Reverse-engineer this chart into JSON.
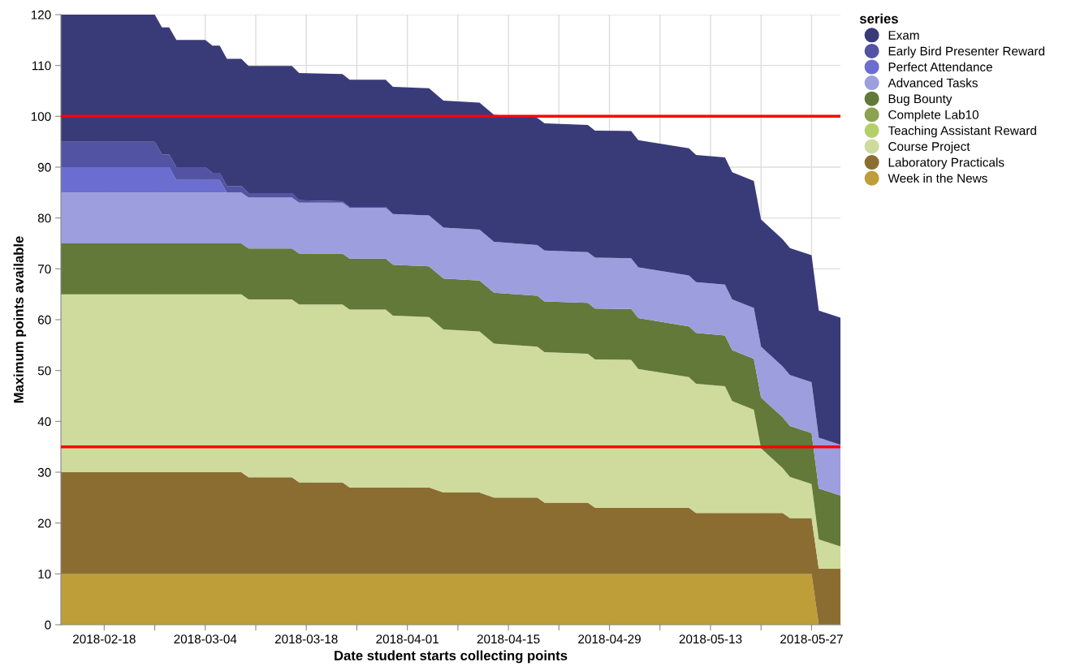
{
  "chart_data": {
    "type": "area",
    "stacked": true,
    "xlabel": "Date student starts collecting points",
    "ylabel": "Maximum points available",
    "legend_title": "series",
    "legend": "right",
    "grid": true,
    "x": [
      "2018-02-12",
      "2018-02-25",
      "2018-02-26",
      "2018-02-27",
      "2018-02-28",
      "2018-03-04",
      "2018-03-05",
      "2018-03-06",
      "2018-03-07",
      "2018-03-09",
      "2018-03-10",
      "2018-03-11",
      "2018-03-12",
      "2018-03-16",
      "2018-03-17",
      "2018-03-23",
      "2018-03-24",
      "2018-03-29",
      "2018-03-30",
      "2018-04-04",
      "2018-04-06",
      "2018-04-11",
      "2018-04-13",
      "2018-04-19",
      "2018-04-20",
      "2018-04-26",
      "2018-04-27",
      "2018-05-02",
      "2018-05-03",
      "2018-05-10",
      "2018-05-11",
      "2018-05-15",
      "2018-05-16",
      "2018-05-19",
      "2018-05-20",
      "2018-05-23",
      "2018-05-24",
      "2018-05-27",
      "2018-05-28",
      "2018-05-31"
    ],
    "series": [
      {
        "name": "Week in the News",
        "color": "#bd9e39",
        "values": [
          10,
          10,
          10,
          10,
          10,
          10,
          10,
          10,
          10,
          10,
          10,
          10,
          10,
          10,
          10,
          10,
          10,
          10,
          10,
          10,
          10,
          10,
          10,
          10,
          10,
          10,
          10,
          10,
          10,
          10,
          10,
          10,
          10,
          10,
          10,
          10,
          10,
          10,
          0,
          0
        ]
      },
      {
        "name": "Laboratory Practicals",
        "color": "#8c6d31",
        "values": [
          20,
          20,
          20,
          20,
          20,
          20,
          20,
          20,
          20,
          20,
          19,
          19,
          19,
          19,
          18,
          18,
          17,
          17,
          17,
          17,
          16,
          16,
          15,
          15,
          14,
          14,
          13,
          13,
          13,
          13,
          12,
          12,
          12,
          12,
          12,
          12,
          11,
          11,
          11,
          11
        ]
      },
      {
        "name": "Course Project",
        "color": "#cedb9c",
        "values": [
          35,
          35,
          35,
          35,
          35,
          35,
          35,
          35,
          35,
          35,
          35,
          35,
          35,
          35,
          35,
          35,
          35,
          35,
          33.8,
          33.5,
          32.1,
          31.7,
          30.3,
          29.7,
          29.6,
          29.3,
          29.2,
          29.1,
          27.3,
          25.7,
          25.4,
          24.9,
          22.0,
          20.3,
          12.7,
          8.8,
          8.1,
          6.7,
          5.8,
          4.4
        ]
      },
      {
        "name": "Teaching Assistant Reward",
        "color": "#b5cf6b",
        "values": [
          null,
          null,
          null,
          null,
          null,
          null,
          null,
          null,
          null,
          null,
          null,
          null,
          null,
          null,
          null,
          null,
          null,
          null,
          null,
          null,
          null,
          null,
          null,
          null,
          null,
          null,
          null,
          null,
          null,
          null,
          null,
          null,
          null,
          null,
          null,
          null,
          null,
          null,
          null,
          null
        ]
      },
      {
        "name": "Complete Lab10",
        "color": "#8ca252",
        "values": [
          null,
          null,
          null,
          null,
          null,
          null,
          null,
          null,
          null,
          null,
          null,
          null,
          null,
          null,
          null,
          null,
          null,
          null,
          null,
          null,
          null,
          null,
          null,
          null,
          null,
          null,
          null,
          null,
          null,
          null,
          null,
          null,
          null,
          null,
          null,
          null,
          null,
          null,
          null,
          null
        ]
      },
      {
        "name": "Bug Bounty",
        "color": "#637939",
        "values": [
          10,
          10,
          10,
          10,
          10,
          10,
          10,
          10,
          10,
          10,
          10,
          10,
          10,
          10,
          10,
          10,
          10,
          10,
          10,
          10,
          10,
          10,
          10,
          10,
          10,
          10,
          10,
          10,
          10,
          10,
          10,
          10,
          10,
          10,
          10,
          10,
          10,
          10,
          10,
          10
        ]
      },
      {
        "name": "Advanced Tasks",
        "color": "#9c9ede",
        "values": [
          10,
          10,
          10,
          10,
          10,
          10,
          10,
          10,
          10,
          10,
          10,
          10,
          10,
          10,
          10,
          10,
          10,
          10,
          10,
          10,
          10,
          10,
          10,
          10,
          10,
          10,
          10,
          10,
          10,
          10,
          10,
          10,
          10,
          10,
          10,
          10,
          10,
          10,
          10,
          10
        ]
      },
      {
        "name": "Perfect Attendance",
        "color": "#6b6ecf",
        "values": [
          5,
          5,
          5,
          5,
          2.5,
          2.5,
          2.5,
          2.5,
          0,
          0,
          0,
          0,
          0,
          0,
          0,
          0,
          0,
          0,
          0,
          0,
          0,
          0,
          0,
          0,
          0,
          0,
          0,
          0,
          0,
          0,
          0,
          0,
          0,
          0,
          0,
          0,
          0,
          0,
          0,
          0
        ]
      },
      {
        "name": "Early Bird Presenter Reward",
        "color": "#5254a3",
        "values": [
          5,
          5,
          2.5,
          2.5,
          2.5,
          2.5,
          1.4,
          1.4,
          1.3,
          1.3,
          0.9,
          0.9,
          0.9,
          0.9,
          0.5,
          0.3,
          0.2,
          0.2,
          0,
          0,
          0,
          0,
          0,
          0,
          0,
          0,
          0,
          0,
          0,
          0,
          0,
          0,
          0,
          0,
          0,
          0,
          0,
          0,
          0,
          0
        ]
      },
      {
        "name": "Exam",
        "color": "#393b79",
        "values": [
          25,
          25,
          25,
          25,
          25,
          25,
          25,
          25,
          25,
          25,
          25,
          25,
          25,
          25,
          25,
          25,
          25,
          25,
          25,
          25,
          25,
          25,
          25,
          25,
          25,
          25,
          25,
          25,
          25,
          25,
          25,
          25,
          25,
          25,
          25,
          25,
          25,
          25,
          25,
          25
        ]
      }
    ],
    "xlim": [
      "2018-02-12",
      "2018-05-31"
    ],
    "xticks": [
      "2018-02-18",
      {
        "value": "2018-02-25",
        "label": null
      },
      "2018-03-04",
      {
        "value": "2018-03-11",
        "label": null
      },
      "2018-03-18",
      {
        "value": "2018-03-25",
        "label": null
      },
      "2018-04-01",
      {
        "value": "2018-04-08",
        "label": null
      },
      "2018-04-15",
      {
        "value": "2018-04-22",
        "label": null
      },
      "2018-04-29",
      {
        "value": "2018-05-06",
        "label": null
      },
      "2018-05-13",
      {
        "value": "2018-05-20",
        "label": null
      },
      "2018-05-27"
    ],
    "ylim": [
      0,
      120
    ],
    "yticks": [
      0,
      10,
      20,
      30,
      40,
      50,
      60,
      70,
      80,
      90,
      100,
      110,
      120
    ],
    "ref_lines": [
      {
        "axis": "y",
        "value": 100,
        "color": "#ff0000"
      },
      {
        "axis": "y",
        "value": 35,
        "color": "#ff0000"
      }
    ]
  }
}
